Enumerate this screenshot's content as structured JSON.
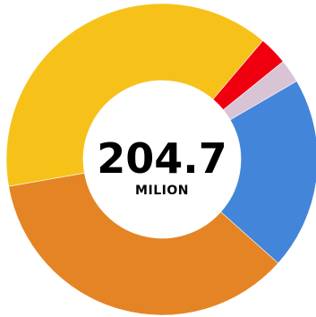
{
  "chart_data": {
    "type": "pie",
    "donut": true,
    "center_total": "204.7",
    "center_unit": "MILION",
    "slices": [
      {
        "value": 79.8,
        "color": "#f6c21a"
      },
      {
        "value": 6.1,
        "color": "#f0000f"
      },
      {
        "value": 5.0,
        "color": "#d9c4d5"
      },
      {
        "value": 40.9,
        "color": "#4385d9"
      },
      {
        "value": 72.9,
        "color": "#e48424"
      }
    ],
    "start_angle_deg": 100,
    "direction": "clockwise"
  }
}
